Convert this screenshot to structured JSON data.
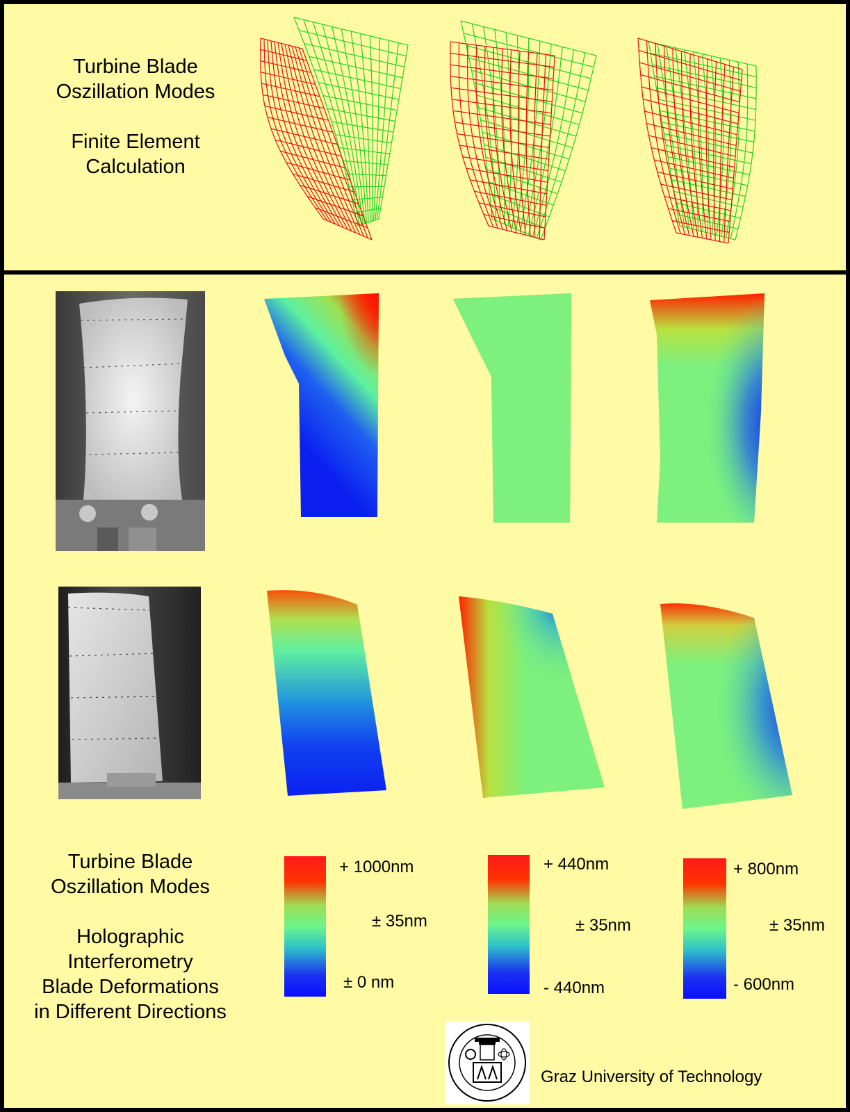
{
  "top_caption": {
    "line1": "Turbine Blade",
    "line2": "Oszillation Modes",
    "line3": "Finite Element",
    "line4": "Calculation"
  },
  "bottom_caption": {
    "line1": "Turbine Blade",
    "line2": "Oszillation Modes",
    "line3": "Holographic",
    "line4": "Interferometry",
    "line5": "Blade Deformations",
    "line6": "in Different Directions"
  },
  "scales": [
    {
      "top": "+ 1000nm",
      "mid": "± 35nm",
      "bottom": "± 0 nm"
    },
    {
      "top": "+ 440nm",
      "mid": "± 35nm",
      "bottom": "- 440nm"
    },
    {
      "top": "+ 800nm",
      "mid": "± 35nm",
      "bottom": "- 600nm"
    }
  ],
  "university": "Graz University of Technology",
  "colors": {
    "background": "#fffaa3",
    "border": "#000000",
    "mesh_red": "#e61010",
    "mesh_green": "#22d422",
    "map_red": "#ff1a00",
    "map_green": "#7df07d",
    "map_blue": "#0a1ff0"
  },
  "icons": [
    "wireframe-mesh",
    "deformation-map",
    "blade-photo",
    "university-seal"
  ]
}
